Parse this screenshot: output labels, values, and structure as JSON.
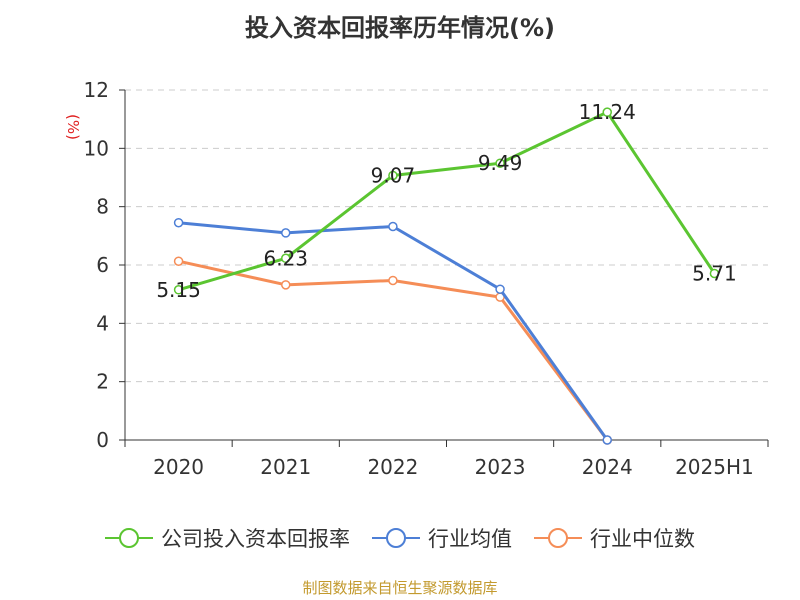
{
  "page": {
    "title": "投入资本回报率历年情况(%)",
    "source": "制图数据来自恒生聚源数据库"
  },
  "chart_data": {
    "type": "line",
    "title": "投入资本回报率历年情况(%)",
    "ylabel": "(%)",
    "xlabel": "",
    "ylim": [
      0,
      12
    ],
    "yticks": [
      0,
      2,
      4,
      6,
      8,
      10,
      12
    ],
    "grid": true,
    "legend_position": "bottom",
    "categories": [
      "2020",
      "2021",
      "2022",
      "2023",
      "2024",
      "2025H1"
    ],
    "series": [
      {
        "name": "公司投入资本回报率",
        "color": "#5bc531",
        "values": [
          5.15,
          6.23,
          9.07,
          9.49,
          11.24,
          5.71
        ],
        "labels": [
          "5.15",
          "6.23",
          "9.07",
          "9.49",
          "11.24",
          "5.71"
        ]
      },
      {
        "name": "行业均值",
        "color": "#4d7fd6",
        "values": [
          7.45,
          7.1,
          7.32,
          5.17,
          0,
          null
        ]
      },
      {
        "name": "行业中位数",
        "color": "#f58d57",
        "values": [
          6.13,
          5.32,
          5.47,
          4.9,
          0,
          null
        ]
      }
    ]
  }
}
